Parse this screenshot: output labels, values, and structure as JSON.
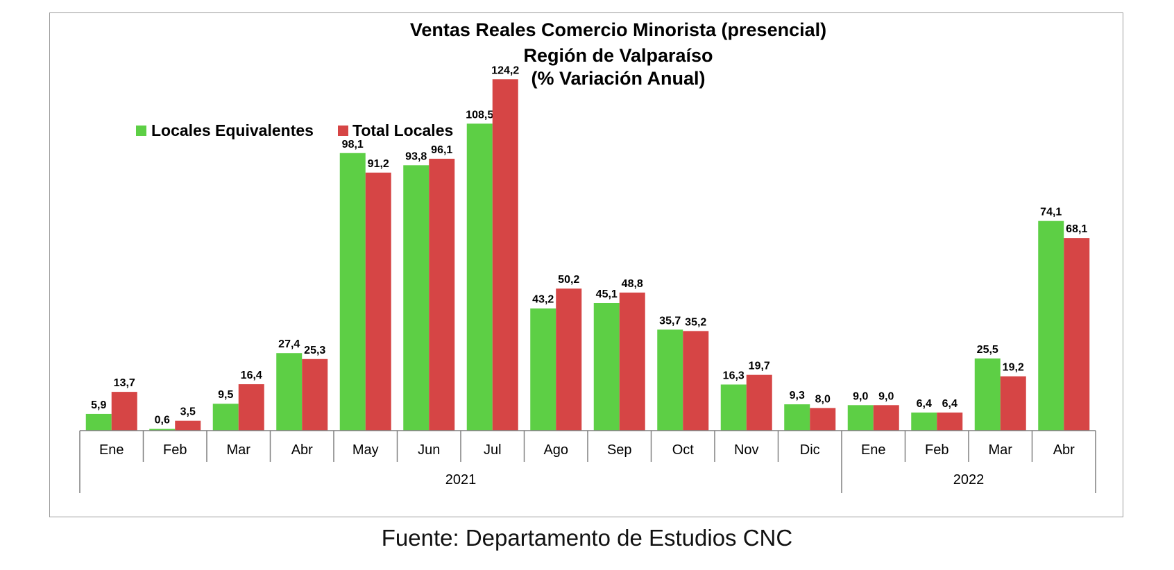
{
  "chart_data": {
    "type": "bar",
    "title_lines": [
      "Ventas Reales Comercio Minorista (presencial)",
      "Región de Valparaíso",
      "(% Variación Anual)"
    ],
    "categories": [
      "Ene",
      "Feb",
      "Mar",
      "Abr",
      "May",
      "Jun",
      "Jul",
      "Ago",
      "Sep",
      "Oct",
      "Nov",
      "Dic",
      "Ene",
      "Feb",
      "Mar",
      "Abr"
    ],
    "groups": [
      {
        "label": "2021",
        "count": 12
      },
      {
        "label": "2022",
        "count": 4
      }
    ],
    "series": [
      {
        "name": "Locales Equivalentes",
        "color": "#5dcf45",
        "values": [
          5.9,
          0.6,
          9.5,
          27.4,
          98.1,
          93.8,
          108.5,
          43.2,
          45.1,
          35.7,
          16.3,
          9.3,
          9.0,
          6.4,
          25.5,
          74.1
        ],
        "labels": [
          "5,9",
          "0,6",
          "9,5",
          "27,4",
          "98,1",
          "93,8",
          "108,5",
          "43,2",
          "45,1",
          "35,7",
          "16,3",
          "9,3",
          "9,0",
          "6,4",
          "25,5",
          "74,1"
        ]
      },
      {
        "name": "Total Locales",
        "color": "#d64545",
        "values": [
          13.7,
          3.5,
          16.4,
          25.3,
          91.2,
          96.1,
          124.2,
          50.2,
          48.8,
          35.2,
          19.7,
          8.0,
          9.0,
          6.4,
          19.2,
          68.1
        ],
        "labels": [
          "13,7",
          "3,5",
          "16,4",
          "25,3",
          "91,2",
          "96,1",
          "124,2",
          "50,2",
          "48,8",
          "35,2",
          "19,7",
          "8,0",
          "9,0",
          "6,4",
          "19,2",
          "68,1"
        ]
      }
    ],
    "legend_position": "top-left",
    "grid": false
  },
  "footer": {
    "source": "Fuente: Departamento de Estudios CNC"
  }
}
